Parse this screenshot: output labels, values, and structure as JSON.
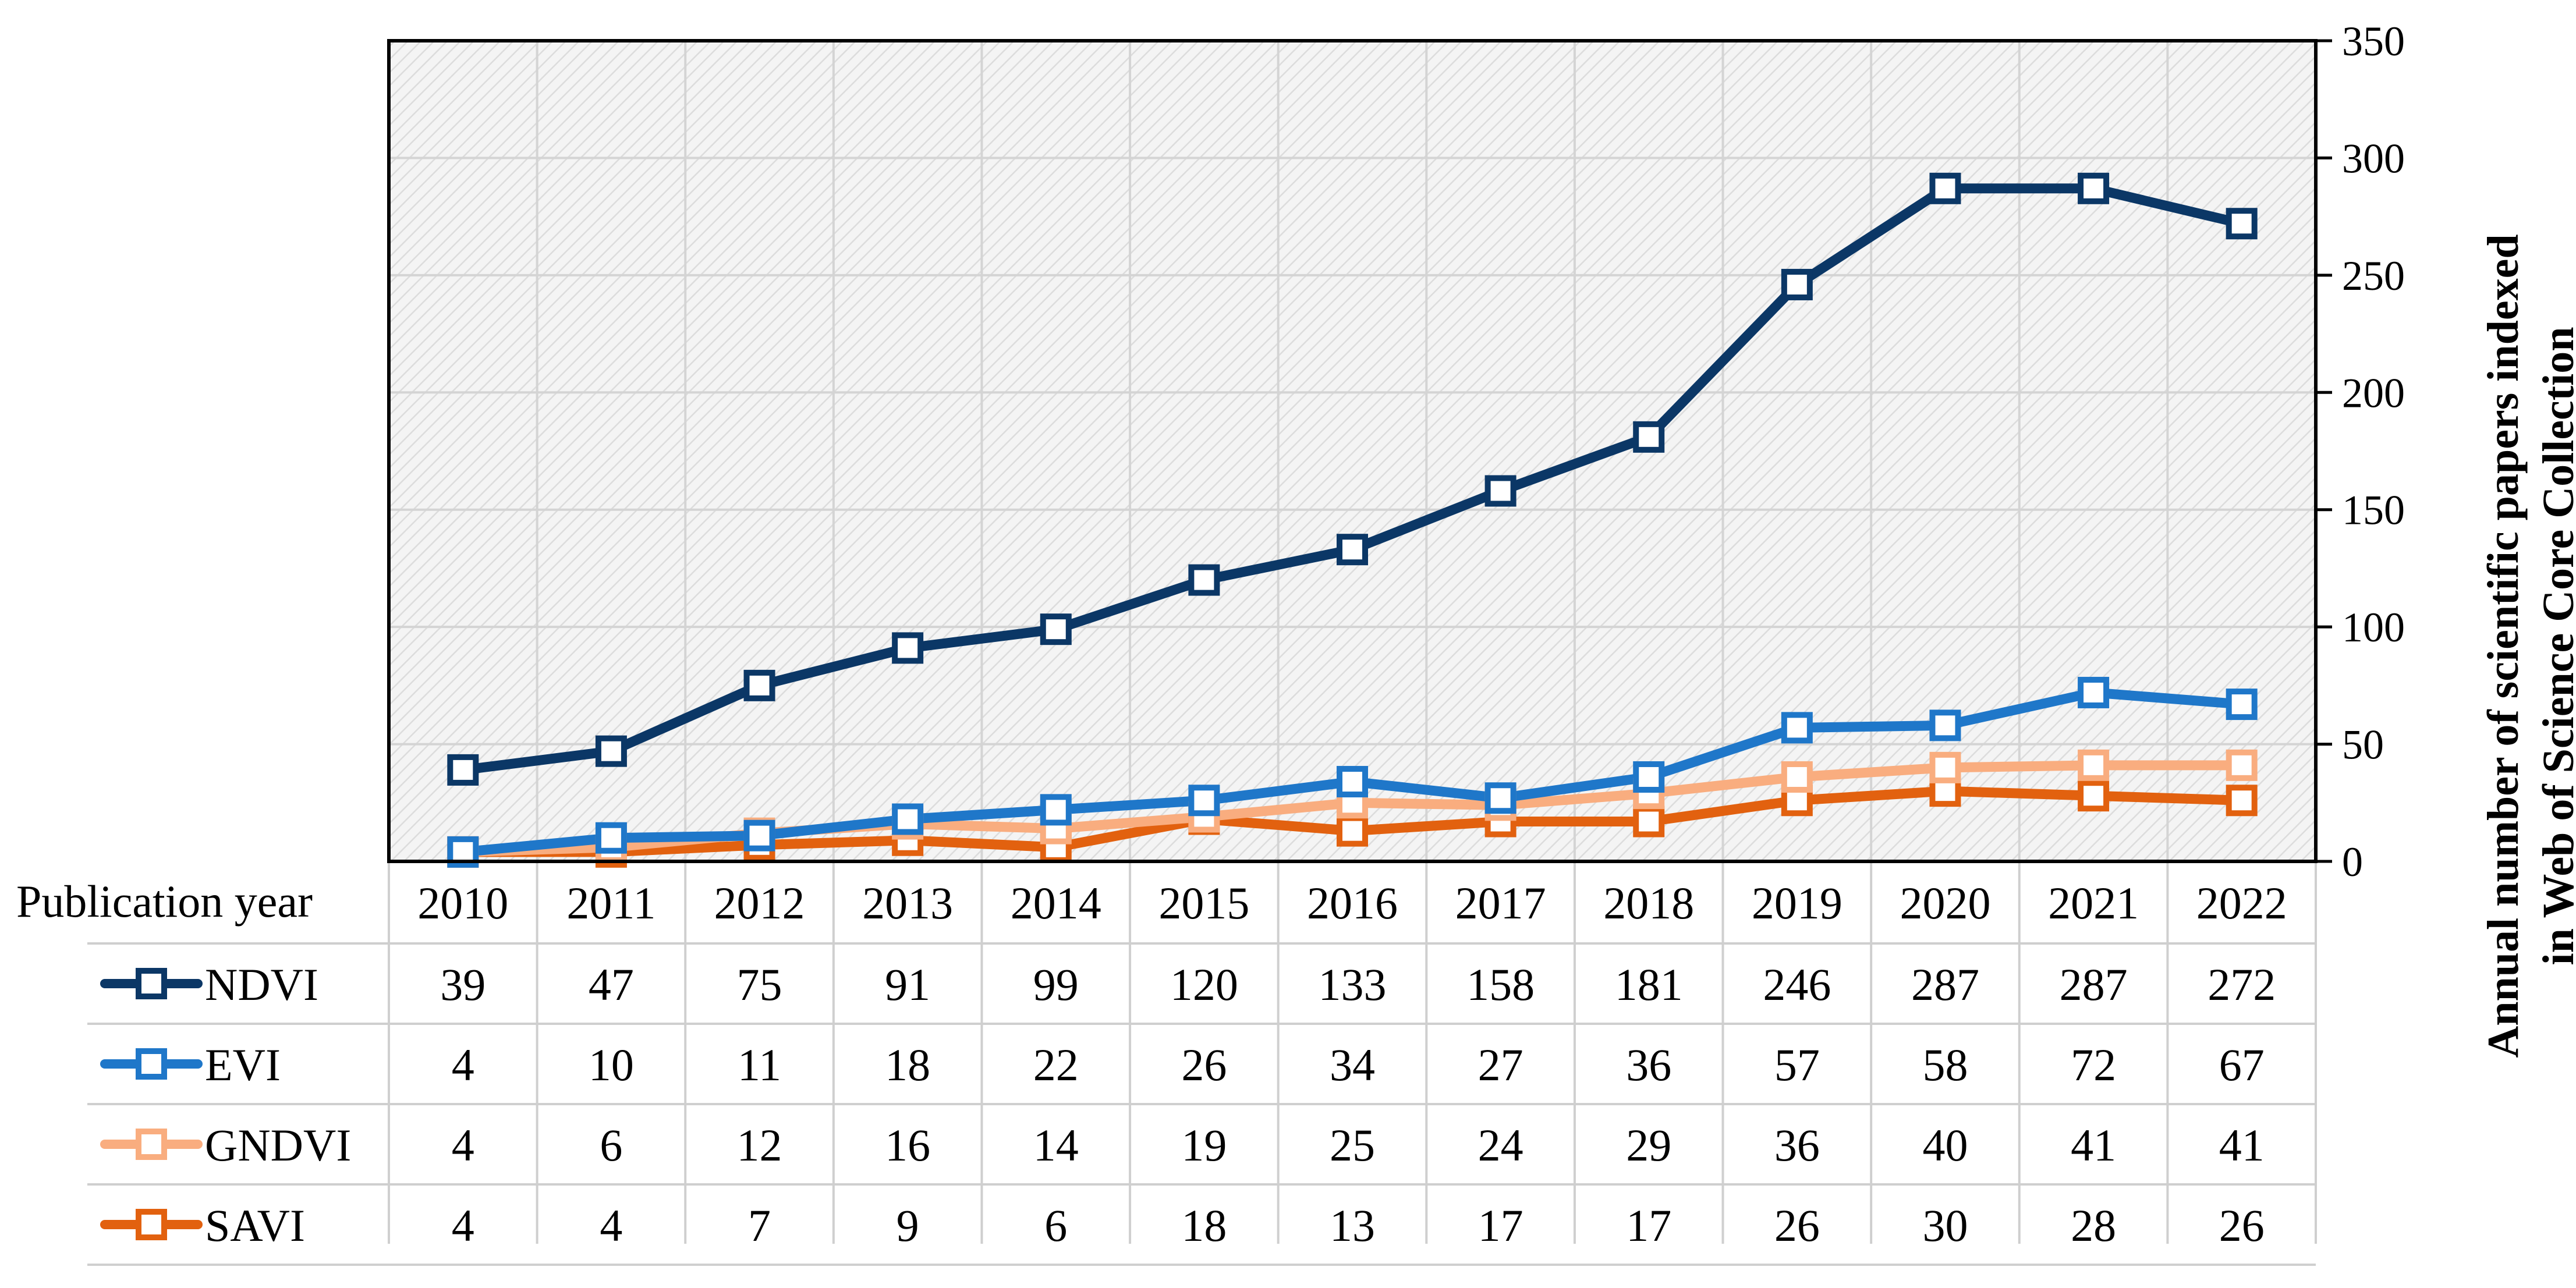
{
  "chart_data": {
    "type": "line",
    "title": "",
    "xlabel": "Publication year",
    "ylabel_line1": "Annual number of scientific papers indexed",
    "ylabel_line2": "in Web of Science Core Collection",
    "ylim": [
      0,
      350
    ],
    "yticks": [
      0,
      50,
      100,
      150,
      200,
      250,
      300,
      350
    ],
    "grid": true,
    "categories": [
      "2010",
      "2011",
      "2012",
      "2013",
      "2014",
      "2015",
      "2016",
      "2017",
      "2018",
      "2019",
      "2020",
      "2021",
      "2022"
    ],
    "series": [
      {
        "name": "NDVI",
        "color": "#0b3766",
        "values": [
          39,
          47,
          75,
          91,
          99,
          120,
          133,
          158,
          181,
          246,
          287,
          287,
          272
        ]
      },
      {
        "name": "EVI",
        "color": "#1f77c9",
        "values": [
          4,
          10,
          11,
          18,
          22,
          26,
          34,
          27,
          36,
          57,
          58,
          72,
          67
        ]
      },
      {
        "name": "GNDVI",
        "color": "#f9ad7f",
        "values": [
          4,
          6,
          12,
          16,
          14,
          19,
          25,
          24,
          29,
          36,
          40,
          41,
          41
        ]
      },
      {
        "name": "SAVI",
        "color": "#e2610f",
        "values": [
          4,
          4,
          7,
          9,
          6,
          18,
          13,
          17,
          17,
          26,
          30,
          28,
          26
        ]
      }
    ]
  }
}
